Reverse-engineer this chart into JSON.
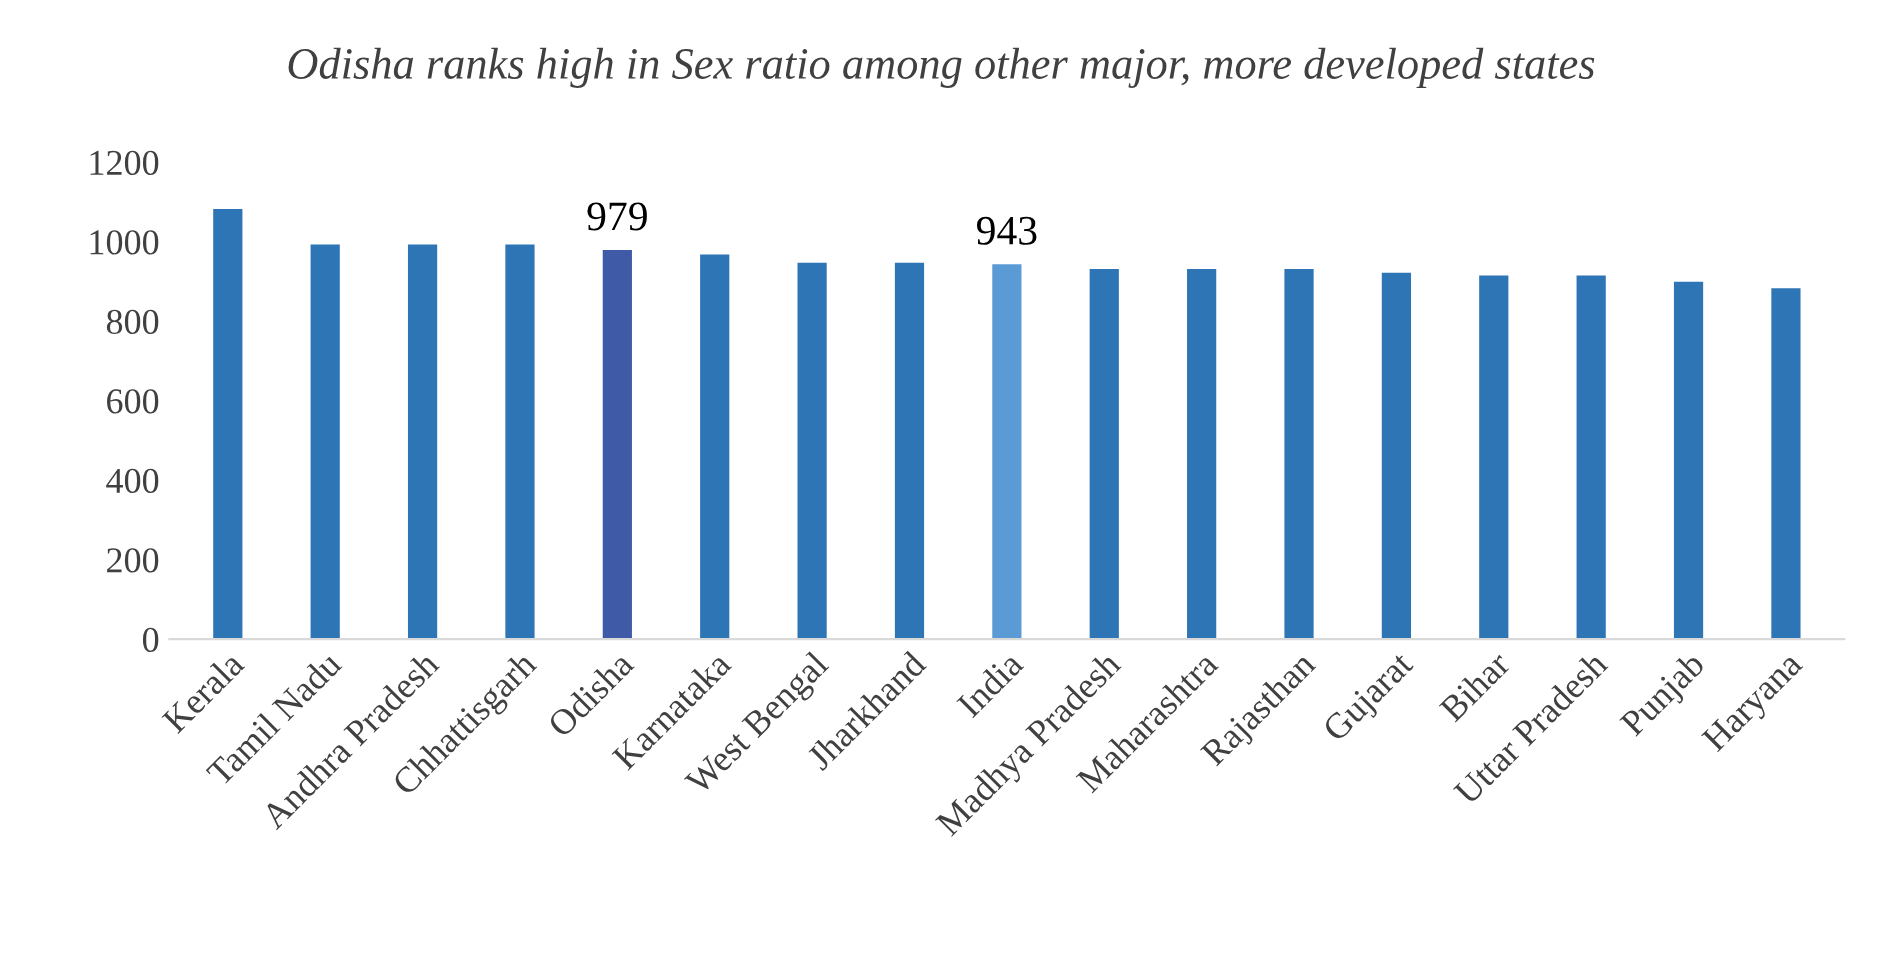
{
  "chart_data": {
    "type": "bar",
    "title": "Odisha ranks high in Sex ratio among other major, more developed states",
    "categories": [
      "Kerala",
      "Tamil Nadu",
      "Andhra Pradesh",
      "Chhattisgarh",
      "Odisha",
      "Karnataka",
      "West Bengal",
      "Jharkhand",
      "India",
      "Madhya Pradesh",
      "Maharashtra",
      "Rajasthan",
      "Gujarat",
      "Bihar",
      "Uttar Pradesh",
      "Punjab",
      "Haryana"
    ],
    "values": [
      1082,
      993,
      993,
      993,
      979,
      968,
      947,
      947,
      943,
      931,
      931,
      931,
      922,
      915,
      915,
      899,
      883
    ],
    "colors": [
      "#2e75b6",
      "#2e75b6",
      "#2e75b6",
      "#2e75b6",
      "#3f5aa6",
      "#2e75b6",
      "#2e75b6",
      "#2e75b6",
      "#5b9bd5",
      "#2e75b6",
      "#2e75b6",
      "#2e75b6",
      "#2e75b6",
      "#2e75b6",
      "#2e75b6",
      "#2e75b6",
      "#2e75b6"
    ],
    "value_labels": [
      null,
      null,
      null,
      null,
      "979",
      null,
      null,
      null,
      "943",
      null,
      null,
      null,
      null,
      null,
      null,
      null,
      null
    ],
    "ylim": [
      0,
      1200
    ],
    "yticks": [
      0,
      200,
      400,
      600,
      800,
      1000,
      1200
    ],
    "grid": false,
    "legend": false
  }
}
